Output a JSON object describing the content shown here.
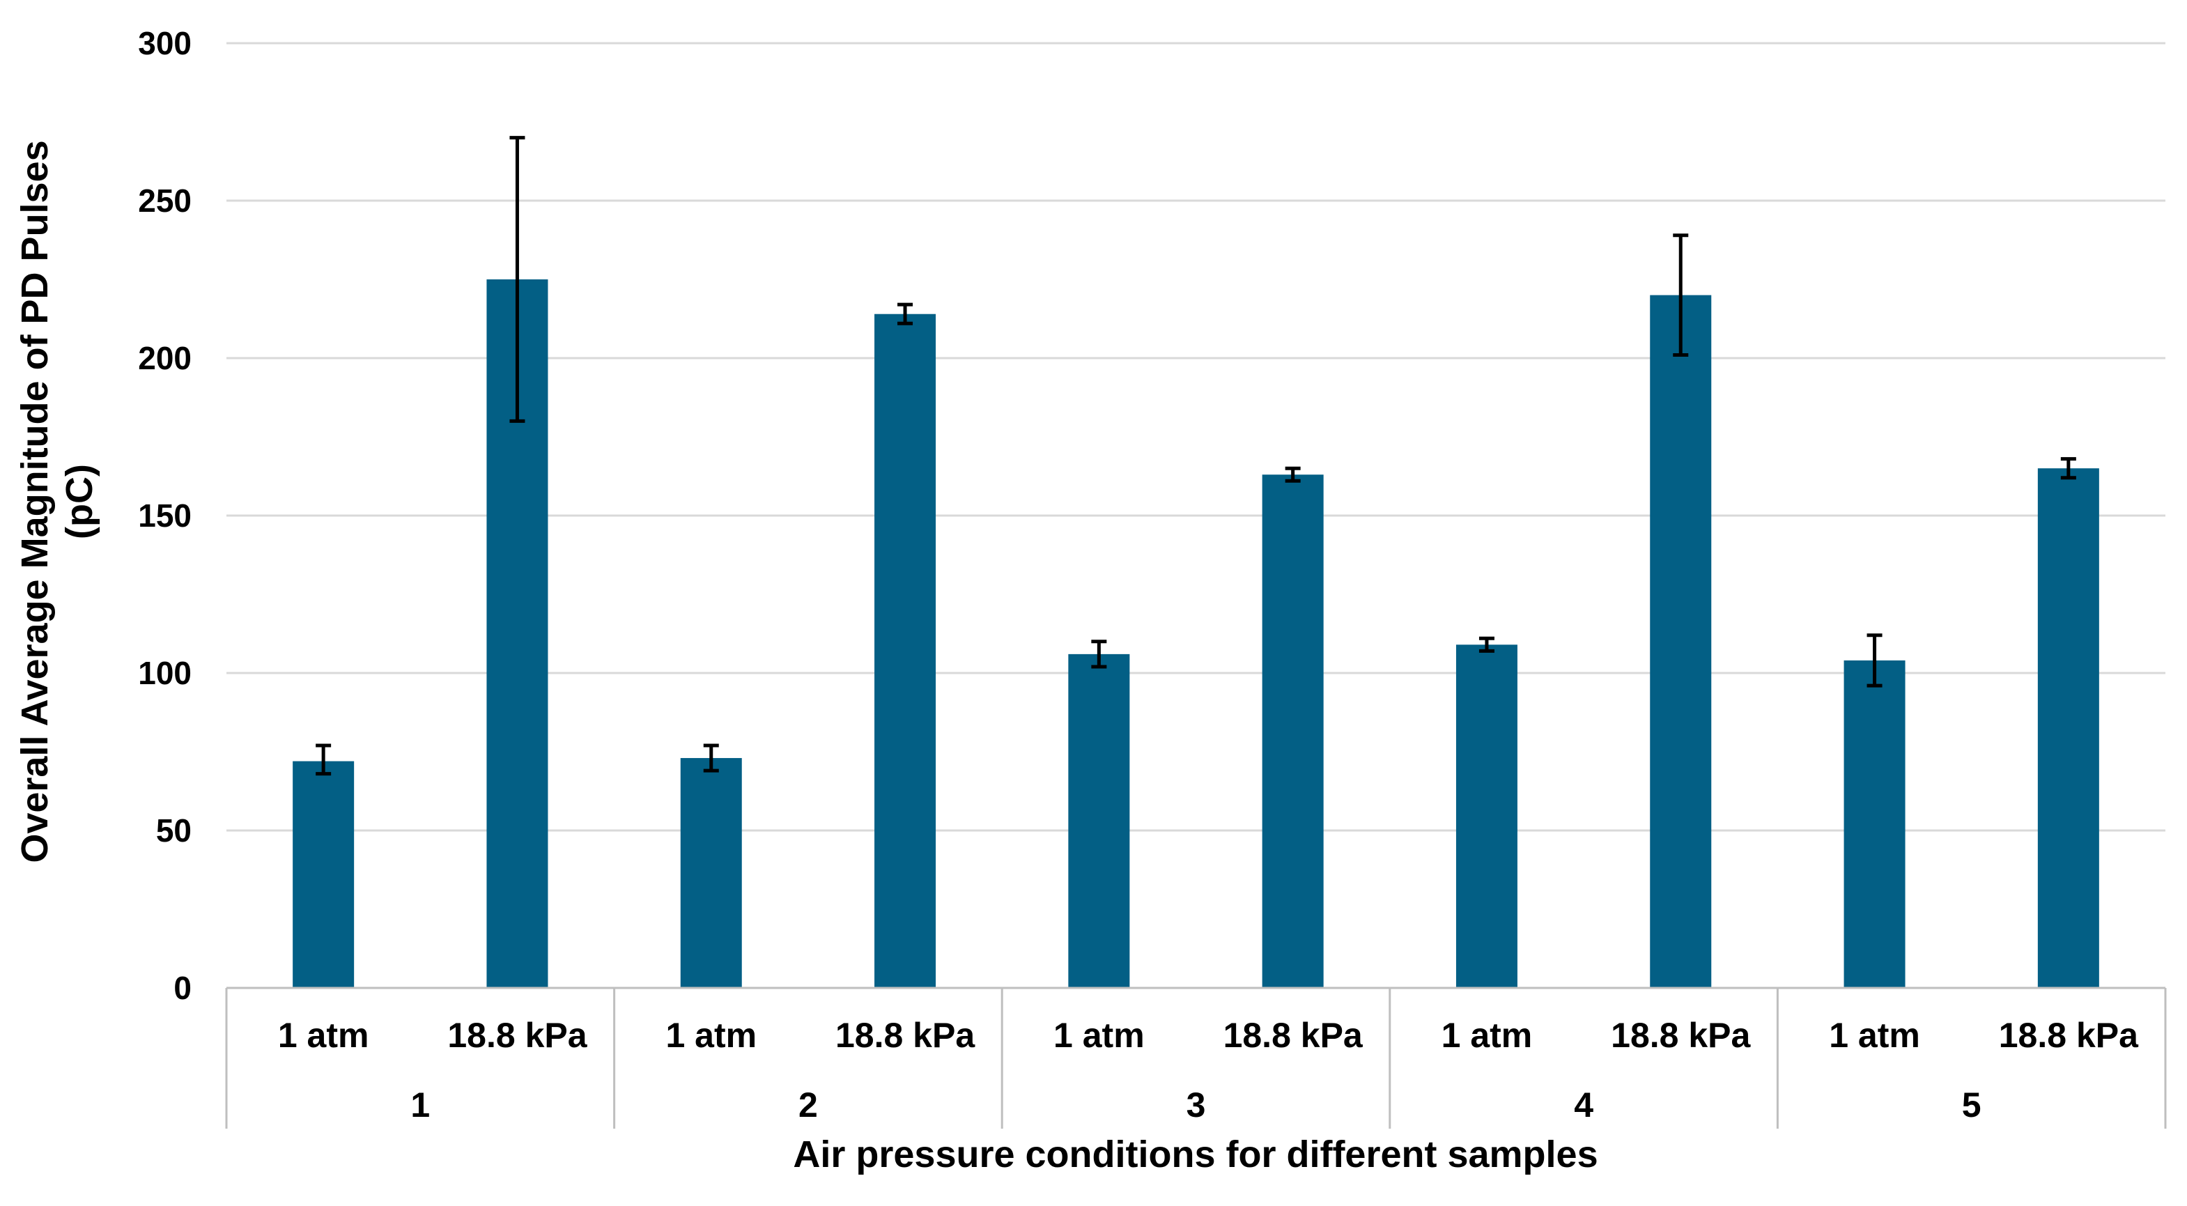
{
  "chart_data": {
    "type": "bar",
    "title": "",
    "xlabel": "Air pressure conditions for different samples",
    "ylabel_line1": "Overall Average Magnitude of PD Pulses",
    "ylabel_line2": "(pC)",
    "ylim": [
      0,
      300
    ],
    "yticks": [
      0,
      50,
      100,
      150,
      200,
      250,
      300
    ],
    "grid": true,
    "legend": "none",
    "groups": [
      "1",
      "2",
      "3",
      "4",
      "5"
    ],
    "categories": [
      "1 atm",
      "18.8 kPa",
      "1 atm",
      "18.8 kPa",
      "1 atm",
      "18.8 kPa",
      "1 atm",
      "18.8 kPa",
      "1 atm",
      "18.8 kPa"
    ],
    "values": [
      72,
      225,
      73,
      214,
      106,
      163,
      109,
      220,
      104,
      165
    ],
    "error_low": [
      68,
      180,
      69,
      211,
      102,
      161,
      107,
      201,
      96,
      162
    ],
    "error_high": [
      77,
      270,
      77,
      217,
      110,
      165,
      111,
      239,
      112,
      168
    ],
    "bar_color": "#035F85",
    "grid_color": "#D9D9D9",
    "axis_color": "#BFBFBF",
    "error_color": "#000000"
  }
}
